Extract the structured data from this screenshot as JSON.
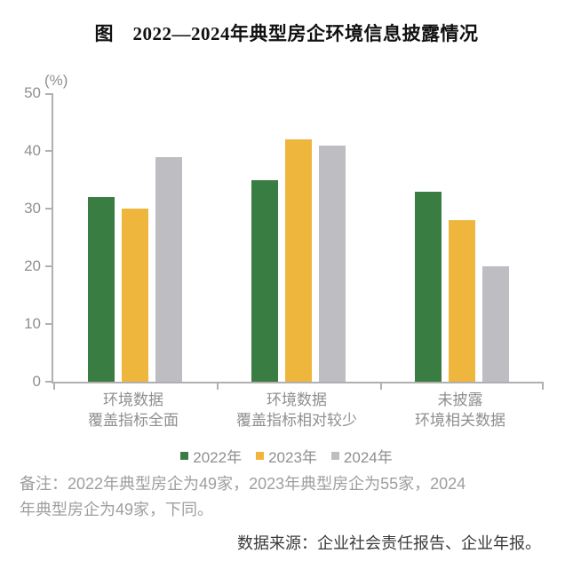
{
  "chart_data": {
    "type": "bar",
    "title": "图　2022—2024年典型房企环境信息披露情况",
    "unit_label": "(%)",
    "categories": [
      "环境数据覆盖指标全面",
      "环境数据覆盖指标相对较少",
      "未披露环境相关数据"
    ],
    "category_lines": [
      [
        "环境数据",
        "覆盖指标全面"
      ],
      [
        "环境数据",
        "覆盖指标相对较少"
      ],
      [
        "未披露",
        "环境相关数据"
      ]
    ],
    "series": [
      {
        "name": "2022年",
        "color": "#3A7D42",
        "values": [
          32,
          35,
          33
        ]
      },
      {
        "name": "2023年",
        "color": "#EEB63D",
        "values": [
          30,
          42,
          28
        ]
      },
      {
        "name": "2024年",
        "color": "#BEBEC2",
        "values": [
          39,
          41,
          20
        ]
      }
    ],
    "ylim": [
      0,
      50
    ],
    "yticks": [
      0,
      10,
      20,
      30,
      40,
      50
    ],
    "grid": false,
    "legend_position": "bottom"
  },
  "note": {
    "lines": [
      "备注：2022年典型房企为49家，2023年典型房企为55家，2024",
      "年典型房企为49家，下同。"
    ]
  },
  "source": "数据来源：企业社会责任报告、企业年报。",
  "colors": {
    "axis": "#b0b0b0",
    "tick_text": "#8f8f8f",
    "note_text": "#9e9e9e",
    "title_text": "#111111",
    "source_text": "#3a3a3a"
  }
}
